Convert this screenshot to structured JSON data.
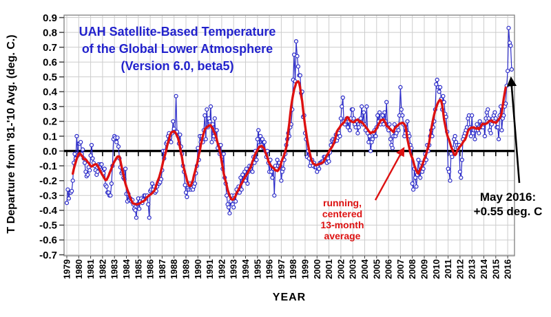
{
  "title": {
    "line1": "UAH Satellite-Based Temperature",
    "line2": "of the Global Lower Atmosphere",
    "line3": "(Version 6.0, beta5)"
  },
  "y_axis": {
    "label": "T Departure from '81-'10 Avg. (deg. C.)",
    "tick_labels": [
      "0.9",
      "0.8",
      "0.7",
      "0.6",
      "0.5",
      "0.4",
      "0.3",
      "0.2",
      "0.1",
      "0.0",
      "-0.1",
      "-0.2",
      "-0.3",
      "-0.4",
      "-0.5",
      "-0.6",
      "-0.7"
    ]
  },
  "x_axis": {
    "label": "YEAR",
    "tick_labels": [
      "1979",
      "1980",
      "1981",
      "1982",
      "1983",
      "1984",
      "1985",
      "1986",
      "1987",
      "1988",
      "1989",
      "1990",
      "1991",
      "1992",
      "1993",
      "1994",
      "1995",
      "1996",
      "1997",
      "1998",
      "1999",
      "2000",
      "2001",
      "2002",
      "2003",
      "2004",
      "2005",
      "2006",
      "2007",
      "2008",
      "2009",
      "2010",
      "2011",
      "2012",
      "2013",
      "2014",
      "2015",
      "2016"
    ]
  },
  "annotations": {
    "may2016": {
      "line1": "May 2016:",
      "line2": "+0.55 deg. C"
    },
    "running": {
      "lines": [
        "running,",
        "centered",
        "13-month",
        "average"
      ]
    }
  },
  "colors": {
    "monthly_line": "#2a2ac8",
    "average_line": "#dd1111",
    "grid": "#cccccc",
    "border": "#808080",
    "zero_line": "#000000",
    "tick": "#444444",
    "title_text": "#2222cc",
    "annotation_red": "#dd1111",
    "text": "#000000"
  },
  "chart_data": {
    "type": "line",
    "title": "UAH Satellite-Based Temperature of the Global Lower Atmosphere (Version 6.0, beta5)",
    "xlabel": "YEAR",
    "ylabel": "T Departure from '81-'10 Avg. (deg. C.)",
    "ylim": [
      -0.7,
      0.9
    ],
    "y_tick_step": 0.1,
    "grid": true,
    "x_range": {
      "start": "1979-01",
      "end": "2016-05"
    },
    "series": [
      {
        "name": "monthly anomaly",
        "style": "thin line with open circle markers",
        "color": "#2a2ac8",
        "values": [
          -0.35,
          -0.26,
          -0.32,
          -0.28,
          -0.28,
          -0.27,
          -0.2,
          -0.08,
          -0.02,
          -0.05,
          0.1,
          -0.03,
          0.05,
          0.05,
          0.06,
          -0.02,
          0.01,
          -0.05,
          -0.08,
          -0.14,
          -0.17,
          -0.16,
          -0.11,
          -0.13,
          -0.03,
          0.04,
          -0.05,
          -0.08,
          -0.1,
          -0.13,
          -0.16,
          -0.14,
          -0.09,
          -0.11,
          -0.09,
          -0.09,
          -0.14,
          -0.15,
          -0.12,
          -0.23,
          -0.24,
          -0.28,
          -0.28,
          -0.3,
          -0.3,
          -0.22,
          -0.1,
          0.08,
          0.1,
          0.09,
          0.06,
          0.09,
          0.03,
          -0.05,
          -0.11,
          -0.15,
          -0.14,
          -0.18,
          -0.19,
          -0.12,
          -0.29,
          -0.34,
          -0.29,
          -0.33,
          -0.32,
          -0.34,
          -0.33,
          -0.36,
          -0.39,
          -0.4,
          -0.45,
          -0.36,
          -0.32,
          -0.39,
          -0.34,
          -0.32,
          -0.35,
          -0.33,
          -0.3,
          -0.3,
          -0.32,
          -0.3,
          -0.36,
          -0.45,
          -0.27,
          -0.26,
          -0.22,
          -0.26,
          -0.24,
          -0.28,
          -0.27,
          -0.24,
          -0.22,
          -0.22,
          -0.21,
          -0.19,
          -0.13,
          0.0,
          -0.05,
          0.0,
          0.05,
          0.06,
          0.1,
          0.12,
          0.09,
          0.06,
          0.12,
          0.2,
          0.15,
          0.13,
          0.37,
          0.13,
          0.1,
          0.05,
          0.11,
          0.03,
          -0.02,
          -0.1,
          -0.14,
          -0.23,
          -0.28,
          -0.31,
          -0.25,
          -0.26,
          -0.22,
          -0.26,
          -0.25,
          -0.26,
          -0.24,
          -0.22,
          -0.15,
          -0.1,
          0.02,
          -0.06,
          0.1,
          0.06,
          0.1,
          0.06,
          0.14,
          0.24,
          0.08,
          0.28,
          0.16,
          0.22,
          0.2,
          0.3,
          0.06,
          0.18,
          0.1,
          0.22,
          0.08,
          0.14,
          0.02,
          0.04,
          -0.02,
          0.04,
          -0.04,
          -0.12,
          -0.02,
          -0.18,
          -0.22,
          -0.3,
          -0.36,
          -0.38,
          -0.42,
          -0.34,
          -0.3,
          -0.36,
          -0.38,
          -0.3,
          -0.34,
          -0.26,
          -0.28,
          -0.24,
          -0.28,
          -0.18,
          -0.26,
          -0.16,
          -0.2,
          -0.14,
          -0.2,
          -0.12,
          -0.22,
          -0.14,
          -0.1,
          -0.12,
          -0.1,
          -0.14,
          -0.04,
          -0.08,
          0.0,
          -0.06,
          0.08,
          0.14,
          0.04,
          0.1,
          0.04,
          0.08,
          0.02,
          0.06,
          0.0,
          -0.04,
          0.0,
          -0.08,
          -0.14,
          -0.06,
          -0.14,
          -0.18,
          -0.12,
          -0.3,
          -0.1,
          -0.12,
          -0.06,
          -0.1,
          -0.08,
          -0.1,
          -0.2,
          -0.14,
          -0.12,
          -0.06,
          -0.02,
          0.04,
          0.08,
          0.12,
          0.1,
          0.16,
          0.18,
          0.28,
          0.48,
          0.65,
          0.47,
          0.74,
          0.64,
          0.57,
          0.51,
          0.51,
          0.39,
          0.4,
          0.23,
          0.24,
          0.12,
          0.08,
          -0.04,
          0.0,
          -0.05,
          -0.1,
          -0.08,
          -0.06,
          -0.1,
          -0.08,
          -0.11,
          -0.11,
          -0.14,
          -0.11,
          -0.12,
          -0.08,
          -0.08,
          -0.07,
          -0.07,
          -0.04,
          -0.04,
          -0.05,
          -0.08,
          -0.05,
          -0.07,
          -0.01,
          0.04,
          0.07,
          0.08,
          0.06,
          0.08,
          0.11,
          0.07,
          0.09,
          0.12,
          0.1,
          0.22,
          0.3,
          0.36,
          0.2,
          0.18,
          0.2,
          0.22,
          0.16,
          0.2,
          0.14,
          0.22,
          0.28,
          0.28,
          0.22,
          0.18,
          0.16,
          0.2,
          0.12,
          0.16,
          0.2,
          0.22,
          0.3,
          0.18,
          0.26,
          0.18,
          0.14,
          0.3,
          0.12,
          0.06,
          0.1,
          0.0,
          0.06,
          0.08,
          0.12,
          0.14,
          0.1,
          0.16,
          0.24,
          0.2,
          0.26,
          0.18,
          0.2,
          0.24,
          0.18,
          0.26,
          0.2,
          0.33,
          0.16,
          0.14,
          0.18,
          0.08,
          0.04,
          0.02,
          0.1,
          0.18,
          0.1,
          0.12,
          0.16,
          0.14,
          0.24,
          0.43,
          0.28,
          0.24,
          0.18,
          0.1,
          0.12,
          0.14,
          0.2,
          0.12,
          0.1,
          0.04,
          0.02,
          -0.22,
          -0.26,
          -0.12,
          -0.18,
          -0.24,
          -0.16,
          -0.06,
          -0.14,
          -0.18,
          -0.08,
          -0.14,
          -0.12,
          -0.08,
          -0.02,
          -0.06,
          0.04,
          0.0,
          0.04,
          0.1,
          0.14,
          0.1,
          0.16,
          0.2,
          0.28,
          0.45,
          0.48,
          0.43,
          0.4,
          0.43,
          0.35,
          0.28,
          0.37,
          0.33,
          0.25,
          0.23,
          0.13,
          -0.12,
          -0.14,
          -0.2,
          -0.02,
          -0.04,
          0.02,
          0.08,
          0.1,
          0.06,
          0.04,
          0.02,
          0.04,
          -0.14,
          -0.18,
          -0.06,
          0.08,
          0.1,
          0.12,
          0.14,
          0.16,
          0.22,
          0.24,
          0.16,
          0.1,
          0.24,
          0.12,
          0.14,
          0.08,
          0.14,
          0.18,
          0.14,
          0.12,
          0.2,
          0.16,
          0.18,
          0.16,
          0.18,
          0.1,
          0.22,
          0.26,
          0.28,
          0.22,
          0.14,
          0.12,
          0.18,
          0.22,
          0.24,
          0.26,
          0.22,
          0.16,
          0.16,
          0.08,
          0.24,
          0.3,
          0.14,
          0.22,
          0.24,
          0.3,
          0.32,
          0.44,
          0.54,
          0.83,
          0.73,
          0.71,
          0.55
        ]
      },
      {
        "name": "running, centered 13-month average",
        "style": "thick smooth line",
        "color": "#dd1111",
        "derived_from": "13-month centered mean of the monthly anomaly series"
      }
    ],
    "last_point": {
      "month": "May 2016",
      "value": 0.55,
      "label": "+0.55 deg. C"
    },
    "legend_position": "none (in-plot text annotations)"
  }
}
